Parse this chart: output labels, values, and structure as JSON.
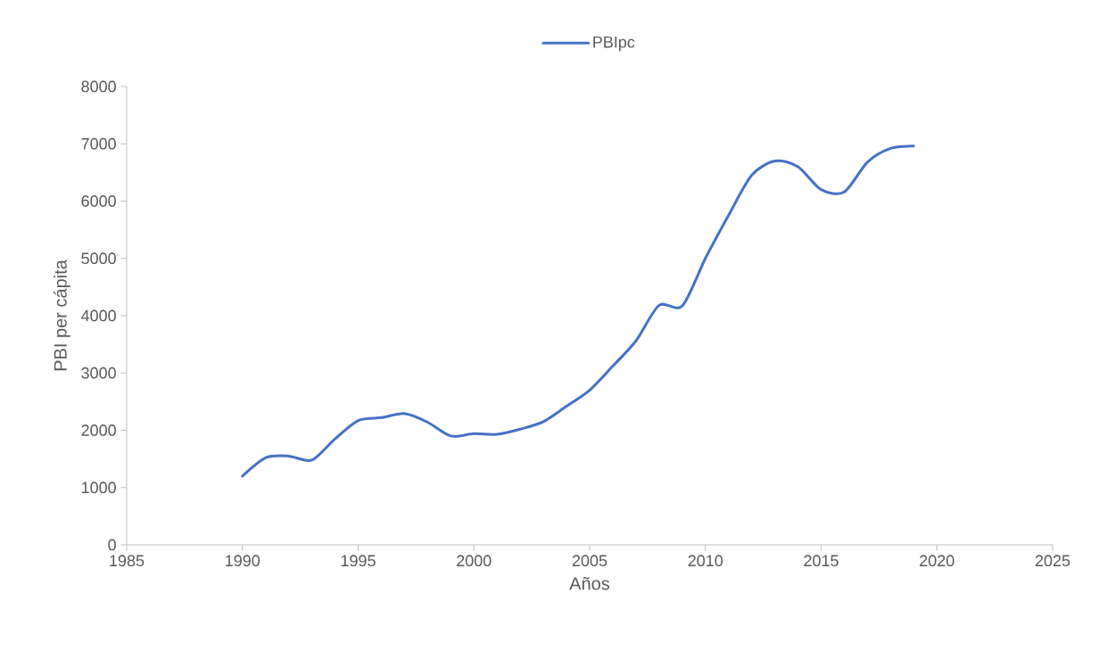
{
  "chart_data": {
    "type": "line",
    "xlabel": "Años",
    "ylabel": "PBI per cápita",
    "x": [
      1990,
      1991,
      1992,
      1993,
      1994,
      1995,
      1996,
      1997,
      1998,
      1999,
      2000,
      2001,
      2002,
      2003,
      2004,
      2005,
      2006,
      2007,
      2008,
      2009,
      2010,
      2011,
      2012,
      2013,
      2014,
      2015,
      2016,
      2017,
      2018,
      2019
    ],
    "series": [
      {
        "name": "PBIpc",
        "color": "#4472c4",
        "values": [
          1200,
          1520,
          1550,
          1480,
          1850,
          2170,
          2220,
          2290,
          2140,
          1900,
          1940,
          1930,
          2020,
          2150,
          2420,
          2700,
          3120,
          3560,
          4180,
          4170,
          5000,
          5750,
          6450,
          6700,
          6600,
          6200,
          6160,
          6680,
          6920,
          6960
        ]
      }
    ],
    "xlim": [
      1985,
      2025
    ],
    "xticks": [
      1985,
      1990,
      1995,
      2000,
      2005,
      2010,
      2015,
      2020,
      2025
    ],
    "ylim": [
      0,
      8000
    ],
    "yticks": [
      0,
      1000,
      2000,
      3000,
      4000,
      5000,
      6000,
      7000,
      8000
    ],
    "legend": "top",
    "marker": "none",
    "line_style": "solid"
  }
}
